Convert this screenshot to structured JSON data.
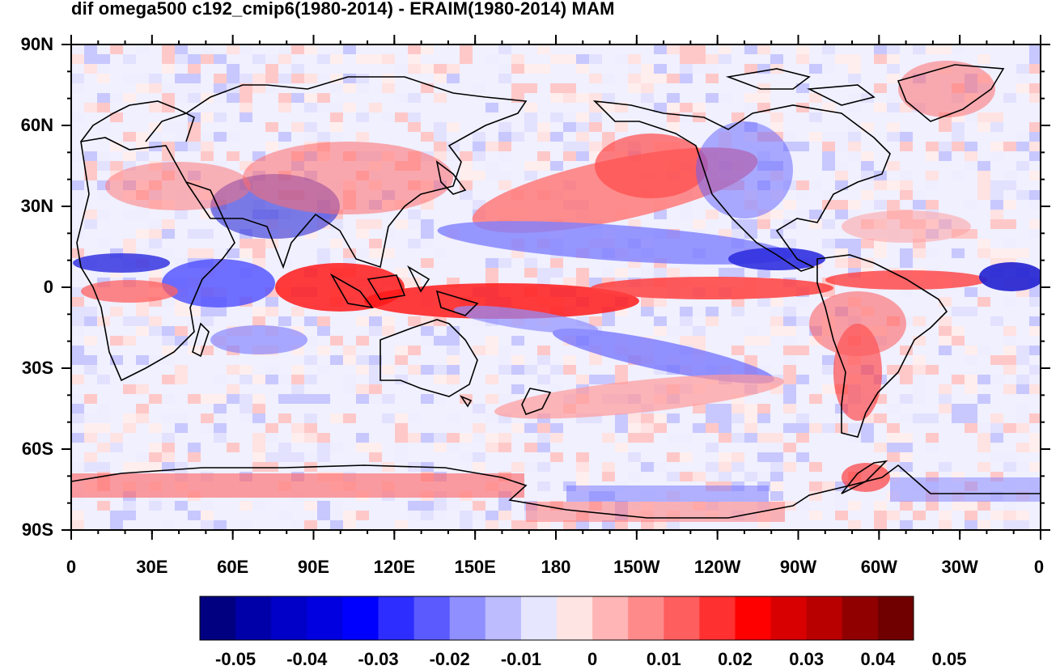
{
  "title": "dif omega500 c192_cmip6(1980-2014) - ERAIM(1980-2014) MAM",
  "lat_labels": [
    "90N",
    "60N",
    "30N",
    "0",
    "30S",
    "60S",
    "90S"
  ],
  "lon_labels": [
    "0",
    "30E",
    "60E",
    "90E",
    "120E",
    "150E",
    "180",
    "150W",
    "120W",
    "90W",
    "60W",
    "30W",
    "0"
  ],
  "colorbar": {
    "colors": [
      "#000080",
      "#0000a8",
      "#0000c8",
      "#0000e0",
      "#0000ff",
      "#2d2dff",
      "#5a5aff",
      "#8f8fff",
      "#bcbcff",
      "#e6e6ff",
      "#ffe4e4",
      "#ffb5b5",
      "#ff8a8a",
      "#ff5e5e",
      "#ff3030",
      "#ff0000",
      "#d80000",
      "#b80000",
      "#900000",
      "#700000"
    ],
    "labels": [
      "-0.05",
      "-0.04",
      "-0.03",
      "-0.02",
      "-0.01",
      "0",
      "0.01",
      "0.02",
      "0.03",
      "0.04",
      "0.05"
    ]
  },
  "legend_values": [
    -0.05,
    -0.04,
    -0.03,
    -0.02,
    -0.01,
    0,
    0.01,
    0.02,
    0.03,
    0.04,
    0.05
  ]
}
